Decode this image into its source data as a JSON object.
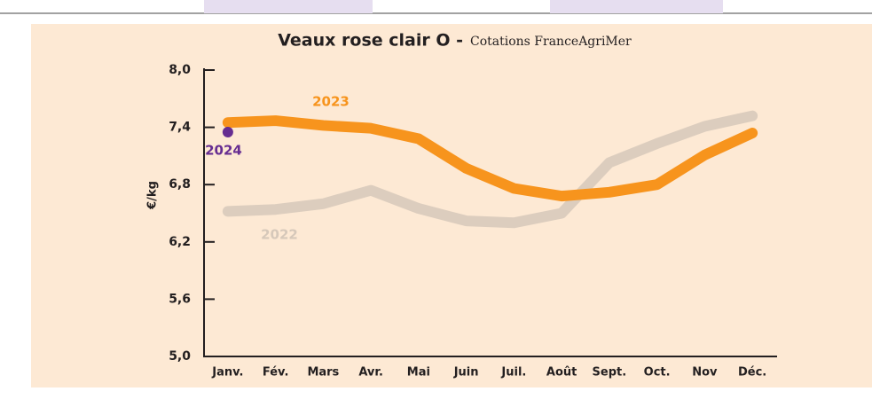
{
  "chart_data": {
    "type": "line",
    "title": "Veaux rose clair O -",
    "subtitle": "Cotations FranceAgriMer",
    "y_label": "€/kg",
    "categories": [
      "Janv.",
      "Fév.",
      "Mars",
      "Avr.",
      "Mai",
      "Juin",
      "Juil.",
      "Août",
      "Sept.",
      "Oct.",
      "Nov",
      "Déc."
    ],
    "series": [
      {
        "name": "2022",
        "color": "#d6c8ba",
        "values": [
          6.52,
          6.54,
          6.6,
          6.74,
          6.55,
          6.42,
          6.4,
          6.5,
          7.03,
          7.23,
          7.41,
          7.52
        ]
      },
      {
        "name": "2023",
        "color": "#f7941d",
        "values": [
          7.45,
          7.47,
          7.42,
          7.39,
          7.28,
          6.97,
          6.76,
          6.68,
          6.72,
          6.8,
          7.11,
          7.34
        ]
      },
      {
        "name": "2024",
        "color": "#662d91",
        "values": [
          7.35,
          null,
          null,
          null,
          null,
          null,
          null,
          null,
          null,
          null,
          null,
          null
        ]
      }
    ],
    "ylim": [
      5,
      8
    ],
    "yticks": [
      {
        "value": 5,
        "label": "5,0"
      },
      {
        "value": 5.6,
        "label": "5,6"
      },
      {
        "value": 6.2,
        "label": "6,2"
      },
      {
        "value": 6.8,
        "label": "6,8"
      },
      {
        "value": 7.4,
        "label": "7,4"
      },
      {
        "value": 8,
        "label": "8,0"
      }
    ]
  }
}
